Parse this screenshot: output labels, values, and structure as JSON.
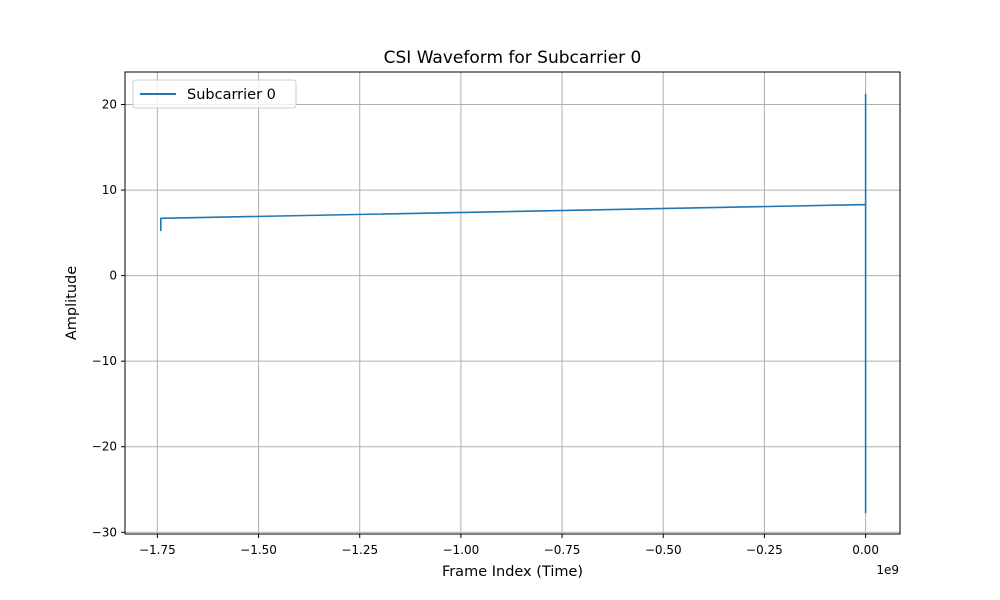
{
  "chart_data": {
    "type": "line",
    "title": "CSI Waveform for Subcarrier 0",
    "xlabel": "Frame Index (Time)",
    "ylabel": "Amplitude",
    "x_offset_label": "1e9",
    "xlim": [
      -1.83,
      0.085
    ],
    "ylim": [
      -30.2,
      23.8
    ],
    "x_ticks": [
      -1.75,
      -1.5,
      -1.25,
      -1.0,
      -0.75,
      -0.5,
      -0.25,
      0.0
    ],
    "x_tick_labels": [
      "−1.75",
      "−1.50",
      "−1.25",
      "−1.00",
      "−0.75",
      "−0.50",
      "−0.25",
      "0.00"
    ],
    "y_ticks": [
      -30,
      -20,
      -10,
      0,
      10,
      20
    ],
    "y_tick_labels": [
      "−30",
      "−20",
      "−10",
      "0",
      "10",
      "20"
    ],
    "grid": true,
    "legend_position": "top-left",
    "series": [
      {
        "name": "Subcarrier 0",
        "color": "#1f77b4",
        "x": [
          -1.7415,
          -1.7415,
          -1.7415,
          -0.001,
          0.0,
          0.0,
          0.0,
          0.0,
          0.0,
          0.0
        ],
        "y": [
          5.2,
          6.7,
          6.7,
          8.3,
          8.3,
          21.2,
          -27.7,
          -5.0,
          20.5,
          8.3
        ]
      }
    ]
  }
}
